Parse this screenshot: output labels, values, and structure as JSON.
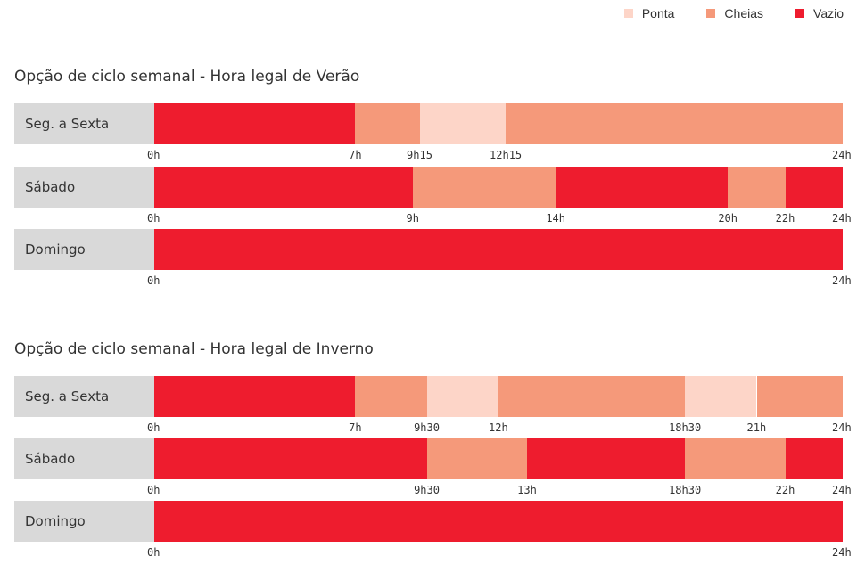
{
  "legend": [
    {
      "label": "Ponta",
      "color": "#fdd5c8",
      "icon": "square-swatch-icon"
    },
    {
      "label": "Cheias",
      "color": "#f5997a",
      "icon": "square-swatch-icon"
    },
    {
      "label": "Vazio",
      "color": "#ee1c2e",
      "icon": "square-swatch-icon"
    }
  ],
  "sections": [
    {
      "title": "Opção de ciclo semanal - Hora legal de Verão",
      "rows": [
        {
          "label": "Seg. a Sexta",
          "segments": [
            {
              "start": 0,
              "end": 7,
              "period": "Vazio"
            },
            {
              "start": 7,
              "end": 9.25,
              "period": "Cheias"
            },
            {
              "start": 9.25,
              "end": 12.25,
              "period": "Ponta"
            },
            {
              "start": 12.25,
              "end": 24,
              "period": "Cheias"
            }
          ],
          "ticks": [
            {
              "label": "0h",
              "at": 0
            },
            {
              "label": "7h",
              "at": 7
            },
            {
              "label": "9h15",
              "at": 9.25
            },
            {
              "label": "12h15",
              "at": 12.25
            },
            {
              "label": "24h",
              "at": 24
            }
          ]
        },
        {
          "label": "Sábado",
          "segments": [
            {
              "start": 0,
              "end": 9,
              "period": "Vazio"
            },
            {
              "start": 9,
              "end": 14,
              "period": "Cheias"
            },
            {
              "start": 14,
              "end": 20,
              "period": "Vazio"
            },
            {
              "start": 20,
              "end": 22,
              "period": "Cheias"
            },
            {
              "start": 22,
              "end": 24,
              "period": "Vazio"
            }
          ],
          "ticks": [
            {
              "label": "0h",
              "at": 0
            },
            {
              "label": "9h",
              "at": 9
            },
            {
              "label": "14h",
              "at": 14
            },
            {
              "label": "20h",
              "at": 20
            },
            {
              "label": "22h",
              "at": 22
            },
            {
              "label": "24h",
              "at": 24
            }
          ]
        },
        {
          "label": "Domingo",
          "segments": [
            {
              "start": 0,
              "end": 24,
              "period": "Vazio"
            }
          ],
          "ticks": [
            {
              "label": "0h",
              "at": 0
            },
            {
              "label": "24h",
              "at": 24
            }
          ]
        }
      ]
    },
    {
      "title": "Opção de ciclo semanal - Hora legal de Inverno",
      "rows": [
        {
          "label": "Seg. a Sexta",
          "segments": [
            {
              "start": 0,
              "end": 7,
              "period": "Vazio"
            },
            {
              "start": 7,
              "end": 9.5,
              "period": "Cheias"
            },
            {
              "start": 9.5,
              "end": 12,
              "period": "Ponta"
            },
            {
              "start": 12,
              "end": 18.5,
              "period": "Cheias"
            },
            {
              "start": 18.5,
              "end": 21,
              "period": "Ponta"
            },
            {
              "start": 21,
              "end": 24,
              "period": "Cheias"
            }
          ],
          "ticks": [
            {
              "label": "0h",
              "at": 0
            },
            {
              "label": "7h",
              "at": 7
            },
            {
              "label": "9h30",
              "at": 9.5
            },
            {
              "label": "12h",
              "at": 12
            },
            {
              "label": "18h30",
              "at": 18.5
            },
            {
              "label": "21h",
              "at": 21
            },
            {
              "label": "24h",
              "at": 24
            }
          ]
        },
        {
          "label": "Sábado",
          "segments": [
            {
              "start": 0,
              "end": 9.5,
              "period": "Vazio"
            },
            {
              "start": 9.5,
              "end": 13,
              "period": "Cheias"
            },
            {
              "start": 13,
              "end": 18.5,
              "period": "Vazio"
            },
            {
              "start": 18.5,
              "end": 22,
              "period": "Cheias"
            },
            {
              "start": 22,
              "end": 24,
              "period": "Vazio"
            }
          ],
          "ticks": [
            {
              "label": "0h",
              "at": 0
            },
            {
              "label": "9h30",
              "at": 9.5
            },
            {
              "label": "13h",
              "at": 13
            },
            {
              "label": "18h30",
              "at": 18.5
            },
            {
              "label": "22h",
              "at": 22
            },
            {
              "label": "24h",
              "at": 24
            }
          ]
        },
        {
          "label": "Domingo",
          "segments": [
            {
              "start": 0,
              "end": 24,
              "period": "Vazio"
            }
          ],
          "ticks": [
            {
              "label": "0h",
              "at": 0
            },
            {
              "label": "24h",
              "at": 24
            }
          ]
        }
      ]
    }
  ],
  "chart_data": {
    "type": "bar",
    "x_range": [
      0,
      24
    ],
    "x_unit": "h",
    "legend_position": "top-right",
    "grid": false
  }
}
